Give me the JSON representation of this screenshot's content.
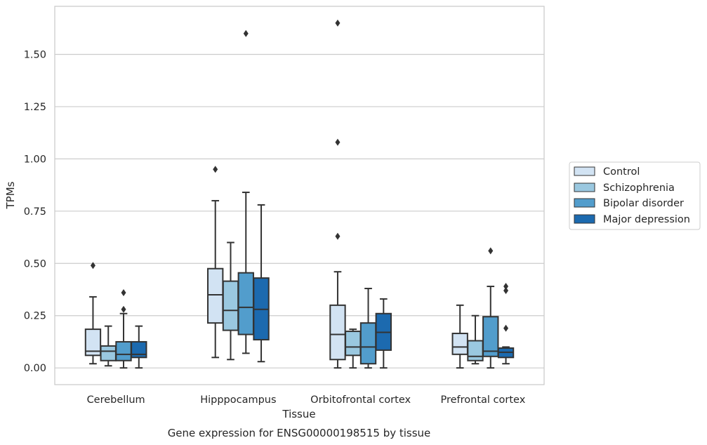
{
  "chart_data": {
    "type": "box",
    "title": "Gene expression for ENSG00000198515 by tissue",
    "xlabel": "Tissue",
    "ylabel": "TPMs",
    "ylim": [
      -0.08,
      1.73
    ],
    "yticks": [
      "0.00",
      "0.25",
      "0.50",
      "0.75",
      "1.00",
      "1.25",
      "1.50"
    ],
    "grid": true,
    "legend_position": "right",
    "categories": [
      "Cerebellum",
      "Hipppocampus",
      "Orbitofrontal cortex",
      "Prefrontal cortex"
    ],
    "series": [
      {
        "name": "Control",
        "color": "#d2e3f3",
        "boxes": [
          {
            "whislo": 0.02,
            "q1": 0.06,
            "med": 0.08,
            "q3": 0.185,
            "whishi": 0.34,
            "fliers": [
              0.49
            ]
          },
          {
            "whislo": 0.05,
            "q1": 0.215,
            "med": 0.35,
            "q3": 0.475,
            "whishi": 0.8,
            "fliers": [
              0.95
            ]
          },
          {
            "whislo": 0.0,
            "q1": 0.04,
            "med": 0.16,
            "q3": 0.3,
            "whishi": 0.46,
            "fliers": [
              0.63,
              1.08,
              1.65
            ]
          },
          {
            "whislo": 0.0,
            "q1": 0.065,
            "med": 0.1,
            "q3": 0.165,
            "whishi": 0.3,
            "fliers": []
          }
        ]
      },
      {
        "name": "Schizophrenia",
        "color": "#9ac8e0",
        "boxes": [
          {
            "whislo": 0.01,
            "q1": 0.035,
            "med": 0.08,
            "q3": 0.105,
            "whishi": 0.2,
            "fliers": []
          },
          {
            "whislo": 0.04,
            "q1": 0.18,
            "med": 0.275,
            "q3": 0.415,
            "whishi": 0.6,
            "fliers": []
          },
          {
            "whislo": 0.0,
            "q1": 0.06,
            "med": 0.1,
            "q3": 0.175,
            "whishi": 0.185,
            "fliers": []
          },
          {
            "whislo": 0.02,
            "q1": 0.035,
            "med": 0.055,
            "q3": 0.13,
            "whishi": 0.25,
            "fliers": []
          }
        ]
      },
      {
        "name": "Bipolar disorder",
        "color": "#529dcc",
        "boxes": [
          {
            "whislo": 0.0,
            "q1": 0.035,
            "med": 0.065,
            "q3": 0.125,
            "whishi": 0.26,
            "fliers": [
              0.28,
              0.36
            ]
          },
          {
            "whislo": 0.07,
            "q1": 0.16,
            "med": 0.29,
            "q3": 0.455,
            "whishi": 0.84,
            "fliers": [
              1.6
            ]
          },
          {
            "whislo": 0.0,
            "q1": 0.02,
            "med": 0.1,
            "q3": 0.215,
            "whishi": 0.38,
            "fliers": []
          },
          {
            "whislo": 0.0,
            "q1": 0.055,
            "med": 0.08,
            "q3": 0.245,
            "whishi": 0.39,
            "fliers": [
              0.56
            ]
          }
        ]
      },
      {
        "name": "Major depression",
        "color": "#1c6aaf",
        "boxes": [
          {
            "whislo": 0.0,
            "q1": 0.05,
            "med": 0.065,
            "q3": 0.125,
            "whishi": 0.2,
            "fliers": []
          },
          {
            "whislo": 0.03,
            "q1": 0.135,
            "med": 0.28,
            "q3": 0.43,
            "whishi": 0.78,
            "fliers": []
          },
          {
            "whislo": 0.0,
            "q1": 0.085,
            "med": 0.17,
            "q3": 0.26,
            "whishi": 0.33,
            "fliers": []
          },
          {
            "whislo": 0.02,
            "q1": 0.05,
            "med": 0.075,
            "q3": 0.095,
            "whishi": 0.1,
            "fliers": [
              0.19,
              0.37,
              0.39
            ]
          }
        ]
      }
    ]
  }
}
